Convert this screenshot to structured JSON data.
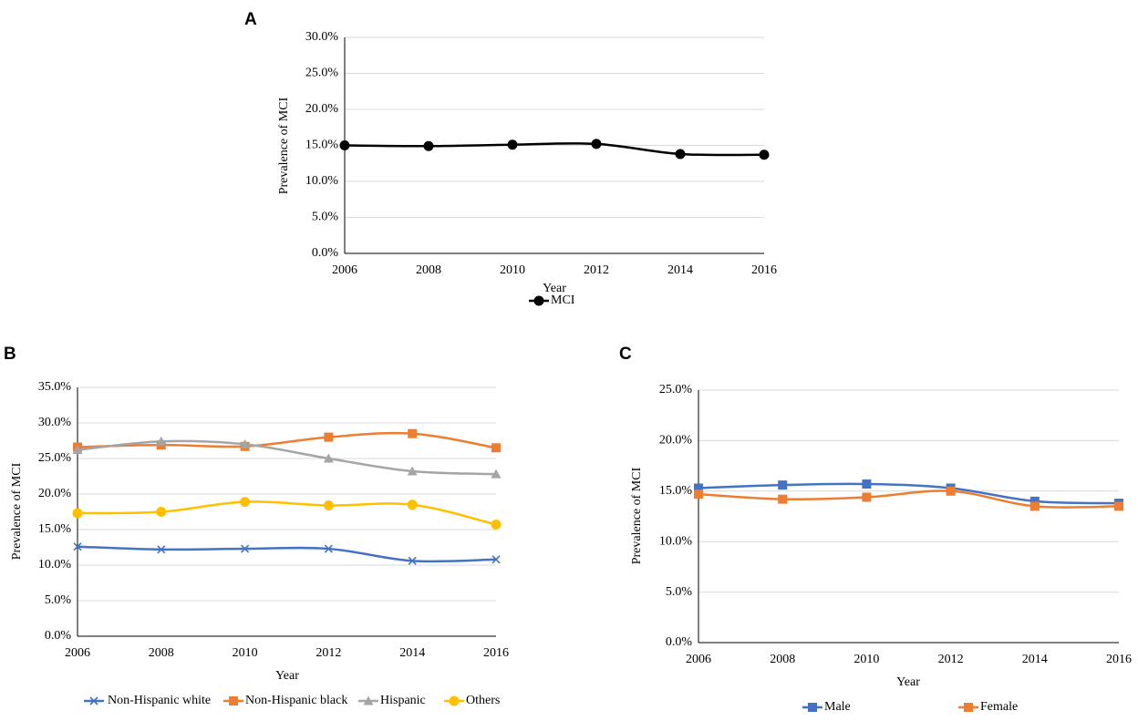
{
  "chart_data": [
    {
      "panel": "A",
      "type": "line",
      "categories": [
        "2006",
        "2008",
        "2010",
        "2012",
        "2014",
        "2016"
      ],
      "xlabel": "Year",
      "ylabel": "Prevalence of MCI",
      "ylim": [
        0,
        30
      ],
      "yticks": [
        "0.0%",
        "5.0%",
        "10.0%",
        "15.0%",
        "20.0%",
        "25.0%",
        "30.0%"
      ],
      "grid": true,
      "legend": "bottom",
      "series": [
        {
          "name": "MCI",
          "color": "#000000",
          "marker": "circle",
          "values": [
            15.0,
            14.9,
            15.1,
            15.2,
            13.8,
            13.7
          ]
        }
      ]
    },
    {
      "panel": "B",
      "type": "line",
      "categories": [
        "2006",
        "2008",
        "2010",
        "2012",
        "2014",
        "2016"
      ],
      "xlabel": "Year",
      "ylabel": "Prevalence of MCI",
      "ylim": [
        0,
        35
      ],
      "yticks": [
        "0.0%",
        "5.0%",
        "10.0%",
        "15.0%",
        "20.0%",
        "25.0%",
        "30.0%",
        "35.0%"
      ],
      "grid": true,
      "legend": "bottom",
      "series": [
        {
          "name": "Non-Hispanic white",
          "color": "#4472c4",
          "marker": "x",
          "values": [
            12.6,
            12.2,
            12.3,
            12.3,
            10.6,
            10.8
          ]
        },
        {
          "name": "Non-Hispanic black",
          "color": "#ed7d31",
          "marker": "square",
          "values": [
            26.6,
            26.9,
            26.7,
            28.0,
            28.5,
            26.5
          ]
        },
        {
          "name": "Hispanic",
          "color": "#a5a5a5",
          "marker": "triangle",
          "values": [
            26.2,
            27.4,
            27.0,
            25.0,
            23.2,
            22.8
          ]
        },
        {
          "name": "Others",
          "color": "#ffc000",
          "marker": "circle",
          "values": [
            17.3,
            17.5,
            18.9,
            18.4,
            18.5,
            15.7
          ]
        }
      ]
    },
    {
      "panel": "C",
      "type": "line",
      "categories": [
        "2006",
        "2008",
        "2010",
        "2012",
        "2014",
        "2016"
      ],
      "xlabel": "Year",
      "ylabel": "Prevalence of MCI",
      "ylim": [
        0,
        25
      ],
      "yticks": [
        "0.0%",
        "5.0%",
        "10.0%",
        "15.0%",
        "20.0%",
        "25.0%"
      ],
      "grid": true,
      "legend": "bottom",
      "series": [
        {
          "name": "Male",
          "color": "#4472c4",
          "marker": "square",
          "values": [
            15.3,
            15.6,
            15.7,
            15.3,
            14.0,
            13.8
          ]
        },
        {
          "name": "Female",
          "color": "#ed7d31",
          "marker": "square",
          "values": [
            14.7,
            14.2,
            14.4,
            15.0,
            13.5,
            13.5
          ]
        }
      ]
    }
  ]
}
